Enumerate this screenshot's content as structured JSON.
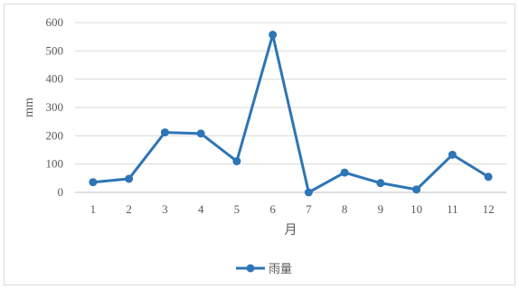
{
  "chart_data": {
    "type": "line",
    "title": "",
    "xlabel": "月",
    "ylabel": "mm",
    "ylim": [
      0,
      600
    ],
    "yticks": [
      "0",
      "100",
      "200",
      "300",
      "400",
      "500",
      "600"
    ],
    "grid": true,
    "legend_position": "bottom",
    "categories": [
      "1",
      "2",
      "3",
      "4",
      "5",
      "6",
      "7",
      "8",
      "9",
      "10",
      "11",
      "12"
    ],
    "series": [
      {
        "name": "雨量",
        "color": "#2e75b6",
        "values": [
          36,
          48,
          212,
          208,
          110,
          557,
          0,
          70,
          33,
          10,
          133,
          55
        ]
      }
    ]
  }
}
